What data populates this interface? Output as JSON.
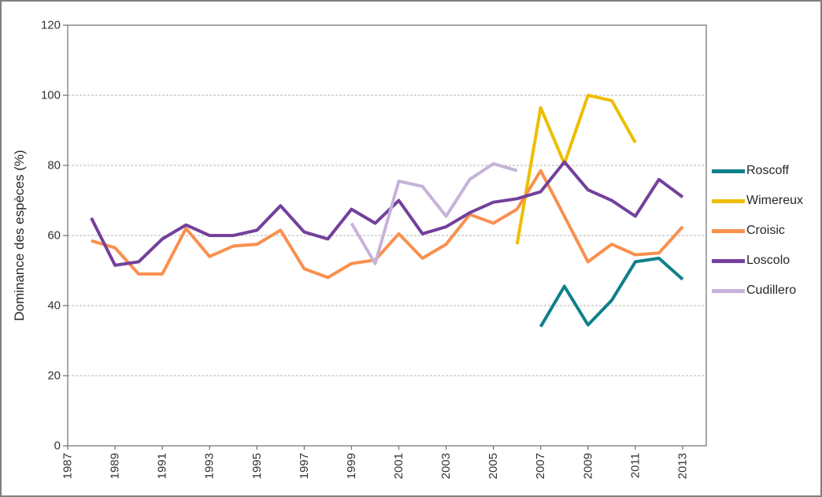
{
  "window": {
    "background": "#ffffff",
    "border_color": "#7f7f7f",
    "plot_border_color": "#6e6e6e",
    "gridline_color": "#b3b3b3",
    "tick_text_color": "#333333"
  },
  "chart_data": {
    "type": "line",
    "title": "",
    "xlabel": "",
    "ylabel": "Dominance des espèces (%)",
    "ylim": [
      0,
      120
    ],
    "xlim": [
      1987,
      2014
    ],
    "y_ticks": [
      0,
      20,
      40,
      60,
      80,
      100,
      120
    ],
    "x_ticks": [
      1987,
      1989,
      1991,
      1993,
      1995,
      1997,
      1999,
      2001,
      2003,
      2005,
      2007,
      2009,
      2011,
      2013
    ],
    "grid": "horizontal-dashed",
    "legend_position": "right",
    "series": [
      {
        "name": "Roscoff",
        "color": "#0f8089",
        "data": [
          [
            2007,
            34
          ],
          [
            2008,
            45.5
          ],
          [
            2009,
            34.5
          ],
          [
            2010,
            41.5
          ],
          [
            2011,
            52.5
          ],
          [
            2012,
            53.5
          ],
          [
            2013,
            47.5
          ]
        ]
      },
      {
        "name": "Wimereux",
        "color": "#edbe00",
        "data": [
          [
            2006,
            57.5
          ],
          [
            2007,
            96.5
          ],
          [
            2008,
            80.5
          ],
          [
            2009,
            100
          ],
          [
            2010,
            98.5
          ],
          [
            2011,
            86.5
          ]
        ]
      },
      {
        "name": "Croisic",
        "color": "#f9904f",
        "data": [
          [
            1988,
            58.5
          ],
          [
            1989,
            56.5
          ],
          [
            1990,
            49
          ],
          [
            1991,
            49
          ],
          [
            1992,
            62
          ],
          [
            1993,
            54
          ],
          [
            1994,
            57
          ],
          [
            1995,
            57.5
          ],
          [
            1996,
            61.5
          ],
          [
            1997,
            50.5
          ],
          [
            1998,
            48
          ],
          [
            1999,
            52
          ],
          [
            2000,
            53
          ],
          [
            2001,
            60.5
          ],
          [
            2002,
            53.5
          ],
          [
            2003,
            57.5
          ],
          [
            2004,
            66
          ],
          [
            2005,
            63.5
          ],
          [
            2006,
            67.5
          ],
          [
            2007,
            78.5
          ],
          [
            2008,
            65.5
          ],
          [
            2009,
            52.5
          ],
          [
            2010,
            57.5
          ],
          [
            2011,
            54.5
          ],
          [
            2012,
            55
          ],
          [
            2013,
            62.5
          ]
        ]
      },
      {
        "name": "Loscolo",
        "color": "#73409b",
        "data": [
          [
            1988,
            65
          ],
          [
            1989,
            51.5
          ],
          [
            1990,
            52.5
          ],
          [
            1991,
            59
          ],
          [
            1992,
            63
          ],
          [
            1993,
            60
          ],
          [
            1994,
            60
          ],
          [
            1995,
            61.5
          ],
          [
            1996,
            68.5
          ],
          [
            1997,
            61
          ],
          [
            1998,
            59
          ],
          [
            1999,
            67.5
          ],
          [
            2000,
            63.5
          ],
          [
            2001,
            70
          ],
          [
            2002,
            60.5
          ],
          [
            2003,
            62.5
          ],
          [
            2004,
            66.5
          ],
          [
            2005,
            69.5
          ],
          [
            2006,
            70.5
          ],
          [
            2007,
            72.5
          ],
          [
            2008,
            81
          ],
          [
            2009,
            73
          ],
          [
            2010,
            70
          ],
          [
            2011,
            65.5
          ],
          [
            2012,
            76
          ],
          [
            2013,
            71
          ]
        ]
      },
      {
        "name": "Cudillero",
        "color": "#c5b3d8",
        "data": [
          [
            1999,
            63.5
          ],
          [
            2000,
            52
          ],
          [
            2001,
            75.5
          ],
          [
            2002,
            74
          ],
          [
            2003,
            65.5
          ],
          [
            2004,
            76
          ],
          [
            2005,
            80.5
          ],
          [
            2006,
            78.5
          ]
        ]
      }
    ]
  }
}
